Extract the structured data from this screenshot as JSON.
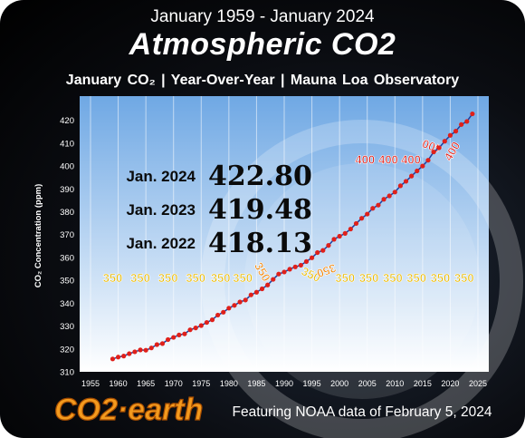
{
  "header": {
    "date_range": "January 1959 - January 2024",
    "title": "Atmospheric CO2",
    "subtitle": "January CO₂   |   Year-Over-Year   |   Mauna Loa Observatory"
  },
  "footer": {
    "logo_text": "CO2 · earth",
    "source_note": "Featuring NOAA data of February 5, 2024"
  },
  "chart_data": {
    "type": "scatter",
    "ylabel": "CO₂ Concentration (ppm)",
    "xlabel": "",
    "xlim": [
      1955,
      2025
    ],
    "ylim": [
      310,
      425
    ],
    "x_ticks": [
      1955,
      1960,
      1965,
      1970,
      1975,
      1980,
      1985,
      1990,
      1995,
      2000,
      2005,
      2010,
      2015,
      2020,
      2025
    ],
    "y_ticks": [
      310,
      320,
      330,
      340,
      350,
      360,
      370,
      380,
      390,
      400,
      410,
      420
    ],
    "grid": "vertical",
    "callouts": [
      {
        "label": "Jan. 2024",
        "value": "422.80"
      },
      {
        "label": "Jan. 2023",
        "value": "419.48"
      },
      {
        "label": "Jan. 2022",
        "value": "418.13"
      }
    ],
    "series": [
      {
        "x": [
          1959,
          1960,
          1961,
          1962,
          1963,
          1964,
          1965,
          1966,
          1967,
          1968,
          1969,
          1970,
          1971,
          1972,
          1973,
          1974,
          1975,
          1976,
          1977,
          1978,
          1979,
          1980,
          1981,
          1982,
          1983,
          1984,
          1985,
          1986,
          1987,
          1988,
          1989,
          1990,
          1991,
          1992,
          1993,
          1994,
          1995,
          1996,
          1997,
          1998,
          1999,
          2000,
          2001,
          2002,
          2003,
          2004,
          2005,
          2006,
          2007,
          2008,
          2009,
          2010,
          2011,
          2012,
          2013,
          2014,
          2015,
          2016,
          2017,
          2018,
          2019,
          2020,
          2021,
          2022,
          2023,
          2024
        ],
        "y": [
          315.62,
          316.43,
          316.89,
          317.94,
          318.74,
          319.57,
          319.44,
          320.44,
          321.89,
          322.34,
          324.09,
          325.04,
          326.12,
          326.59,
          328.37,
          329.18,
          330.23,
          331.58,
          332.75,
          334.8,
          336.05,
          337.84,
          339.06,
          340.54,
          341.39,
          343.64,
          344.8,
          346.28,
          347.97,
          350.43,
          352.76,
          353.65,
          354.87,
          355.88,
          356.61,
          358.22,
          359.87,
          362.14,
          363.09,
          365.26,
          367.95,
          369.28,
          370.52,
          372.44,
          374.87,
          377.13,
          378.97,
          381.49,
          382.9,
          385.44,
          386.92,
          388.59,
          391.33,
          393.31,
          395.61,
          397.85,
          399.98,
          402.52,
          406.13,
          407.96,
          410.83,
          413.4,
          415.24,
          418.13,
          419.48,
          422.8
        ]
      }
    ],
    "annotations": [
      {
        "text": "350",
        "x": 1959,
        "y": 349.2,
        "color": "#e8b800"
      },
      {
        "text": "350",
        "x": 1964,
        "y": 349.2,
        "color": "#e8b800"
      },
      {
        "text": "350",
        "x": 1969,
        "y": 349.2,
        "color": "#e8b800"
      },
      {
        "text": "350",
        "x": 1974,
        "y": 349.2,
        "color": "#e8b800"
      },
      {
        "text": "350",
        "x": 1978.5,
        "y": 349.2,
        "color": "#e8b800"
      },
      {
        "text": "350",
        "x": 1982.5,
        "y": 349.2,
        "color": "#e8b800"
      },
      {
        "text": "350",
        "x": 1986,
        "y": 352,
        "color": "#f08000",
        "rotate": 60
      },
      {
        "text": "350",
        "x": 1994.8,
        "y": 350.8,
        "color": "#e8b800",
        "rotate": 25
      },
      {
        "text": "350",
        "x": 1997.6,
        "y": 352.8,
        "color": "#f08000",
        "rotate": 160
      },
      {
        "text": "350",
        "x": 2001,
        "y": 349.2,
        "color": "#e8b800"
      },
      {
        "text": "350",
        "x": 2005.3,
        "y": 349.2,
        "color": "#e8b800"
      },
      {
        "text": "350",
        "x": 2009.6,
        "y": 349.2,
        "color": "#e8b800"
      },
      {
        "text": "350",
        "x": 2013.9,
        "y": 349.2,
        "color": "#e8b800"
      },
      {
        "text": "350",
        "x": 2018.2,
        "y": 349.2,
        "color": "#e8b800"
      },
      {
        "text": "350",
        "x": 2022.5,
        "y": 349.2,
        "color": "#e8b800"
      },
      {
        "text": "400",
        "x": 2004.6,
        "y": 401,
        "color": "#e0201a"
      },
      {
        "text": "400",
        "x": 2008.8,
        "y": 401,
        "color": "#e0201a"
      },
      {
        "text": "400",
        "x": 2012.9,
        "y": 401,
        "color": "#e0201a"
      },
      {
        "text": "400",
        "x": 2016.7,
        "y": 407.2,
        "color": "#e0201a",
        "rotate": 200
      },
      {
        "text": "400",
        "x": 2020.4,
        "y": 404.8,
        "color": "#e0201a",
        "rotate": 300
      }
    ]
  },
  "colors": {
    "frame": "#000000",
    "plot_top": "#6fa8e4",
    "plot_bottom": "#ffffff",
    "marker_fill": "#e0201a",
    "connector": "#1b3fa0",
    "logo_orange": "#f39a1e",
    "callout_text": "#0a0a0a"
  }
}
